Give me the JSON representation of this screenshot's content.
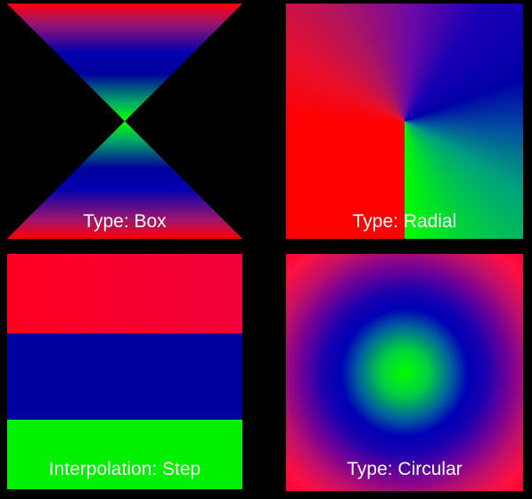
{
  "panels": {
    "box": {
      "label": "Type: Box"
    },
    "radial": {
      "label": "Type: Radial"
    },
    "step": {
      "label": "Interpolation: Step"
    },
    "circular": {
      "label": "Type: Circular"
    }
  },
  "colors": {
    "background": "#000000",
    "red": "#ff0000",
    "blue": "#0000b0",
    "green": "#00ff00",
    "label_text": "#ffffff"
  }
}
